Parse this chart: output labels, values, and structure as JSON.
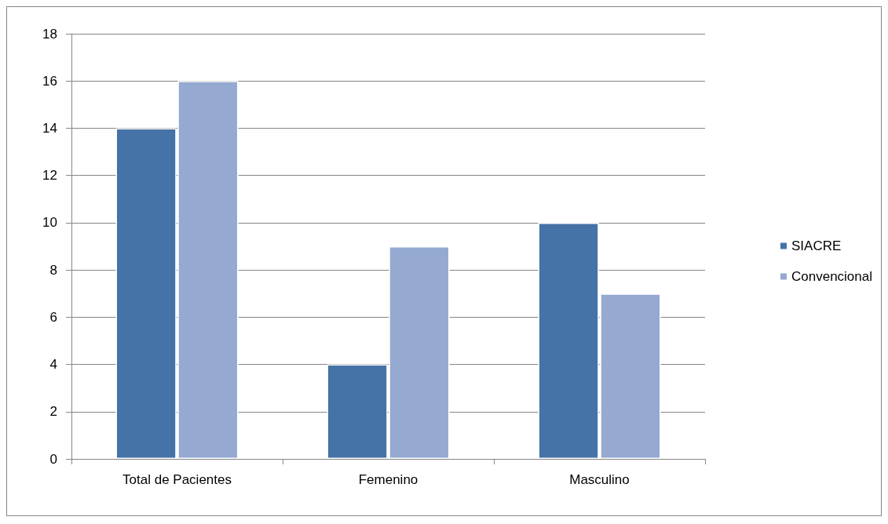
{
  "chart_data": {
    "type": "bar",
    "categories": [
      "Total de Pacientes",
      "Femenino",
      "Masculino"
    ],
    "series": [
      {
        "name": "SIACRE",
        "color": "#4572a7",
        "values": [
          14,
          4,
          10
        ]
      },
      {
        "name": "Convencional",
        "color": "#95a9d1",
        "values": [
          16,
          9,
          7
        ]
      }
    ],
    "ylim": [
      0,
      18
    ],
    "yticks": [
      0,
      2,
      4,
      6,
      8,
      10,
      12,
      14,
      16,
      18
    ],
    "grid": "y",
    "legend": "right"
  }
}
